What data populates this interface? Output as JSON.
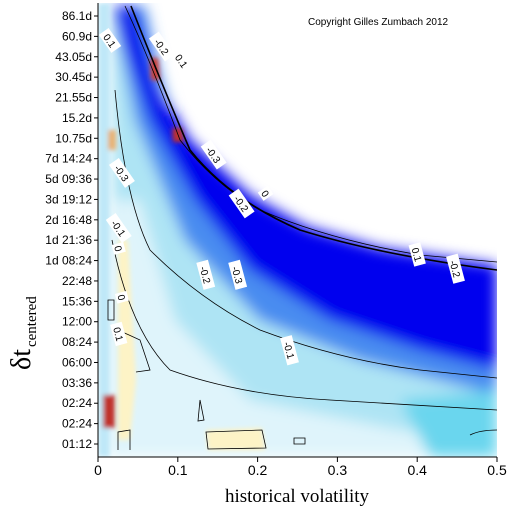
{
  "chart_data": {
    "type": "heatmap",
    "title": "",
    "copyright": "Copyright Gilles Zumbach 2012",
    "xlabel": "historical volatility",
    "ylabel_main": "δt",
    "ylabel_sub": "centered",
    "xlim": [
      0,
      0.5
    ],
    "x_ticks": [
      {
        "value": 0,
        "label": "0"
      },
      {
        "value": 0.1,
        "label": "0.1"
      },
      {
        "value": 0.2,
        "label": "0.2"
      },
      {
        "value": 0.3,
        "label": "0.3"
      },
      {
        "value": 0.4,
        "label": "0.4"
      },
      {
        "value": 0.5,
        "label": "0.5"
      }
    ],
    "y_ticks": [
      "01:12",
      "02:24",
      "02:24",
      "03:36",
      "06:00",
      "08:24",
      "12:00",
      "15:36",
      "22:48",
      "1d 08:24",
      "1d 21:36",
      "2d 16:48",
      "3d 19:12",
      "5d 09:36",
      "7d 14:24",
      "10.75d",
      "15.2d",
      "21.55d",
      "30.45d",
      "43.05d",
      "60.9d",
      "86.1d"
    ],
    "colors": {
      "strong_negative": "#0000ee",
      "negative": "#3a7ff0",
      "weak_negative": "#bfe8f8",
      "zero": "#ffffff",
      "weak_positive": "#fdf3c6",
      "positive": "#e8b070",
      "strong_positive": "#c0302a",
      "contour": "#000000"
    },
    "contour_labels": [
      {
        "x": 0.015,
        "y": 19.8,
        "text": "0.1"
      },
      {
        "x": 0.08,
        "y": 19.5,
        "text": "-0.2"
      },
      {
        "x": 0.105,
        "y": 18.8,
        "text": "0.1"
      },
      {
        "x": 0.145,
        "y": 14.2,
        "text": "-0.3"
      },
      {
        "x": 0.18,
        "y": 11.8,
        "text": "-0.2"
      },
      {
        "x": 0.21,
        "y": 12.3,
        "text": "0"
      },
      {
        "x": 0.135,
        "y": 8.3,
        "text": "-0.2"
      },
      {
        "x": 0.175,
        "y": 8.3,
        "text": "-0.3"
      },
      {
        "x": 0.4,
        "y": 9.3,
        "text": "0.1"
      },
      {
        "x": 0.448,
        "y": 8.6,
        "text": "-0.2"
      },
      {
        "x": 0.24,
        "y": 4.6,
        "text": "-0.1"
      },
      {
        "x": 0.03,
        "y": 13.3,
        "text": "-0.3"
      },
      {
        "x": 0.026,
        "y": 10.6,
        "text": "-0.1"
      },
      {
        "x": 0.026,
        "y": 9.6,
        "text": "0"
      },
      {
        "x": 0.03,
        "y": 7.2,
        "text": "0"
      },
      {
        "x": 0.026,
        "y": 5.4,
        "text": "0.1"
      }
    ]
  }
}
